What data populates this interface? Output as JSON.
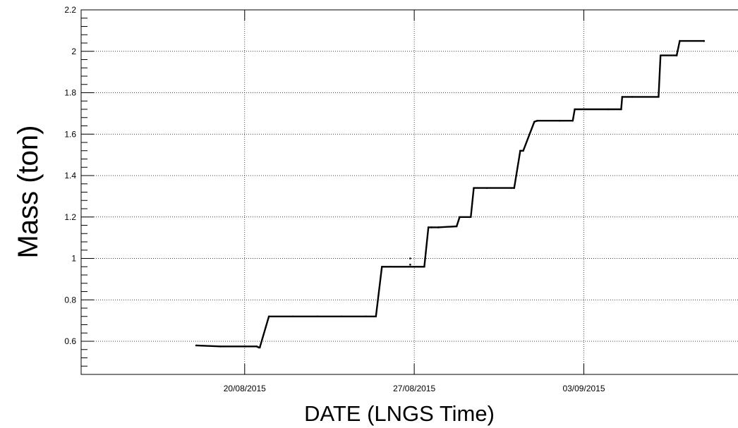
{
  "chart_data": {
    "type": "scatter",
    "xlabel": "DATE (LNGS Time)",
    "ylabel": "Mass (ton)",
    "ylim": [
      0.44,
      2.2
    ],
    "xlim": [
      "2015-08-13T06:00",
      "2015-09-10T05:00"
    ],
    "grid": true,
    "y_ticks": [
      0.6,
      0.8,
      1,
      1.2,
      1.4,
      1.6,
      1.8,
      2,
      2.2
    ],
    "y_tick_labels": [
      "0.6",
      "0.8",
      "1",
      "1.2",
      "1.4",
      "1.6",
      "1.8",
      "2",
      "2.2"
    ],
    "x_ticks": [
      "2015-08-20T00:00",
      "2015-08-27T00:00",
      "2015-09-03T00:00"
    ],
    "x_tick_labels": [
      "20/08/2015",
      "27/08/2015",
      "03/09/2015"
    ],
    "series": [
      {
        "x": [
          "2015-08-18T00:00",
          "2015-08-19T00:00",
          "2015-08-20T00:00",
          "2015-08-20T12:00",
          "2015-08-20T14:00",
          "2015-08-20T15:00",
          "2015-08-21T00:00",
          "2015-08-22T00:00",
          "2015-08-23T00:00",
          "2015-08-24T00:00",
          "2015-08-25T00:00",
          "2015-08-25T10:00",
          "2015-08-25T16:00",
          "2015-08-26T00:00",
          "2015-08-27T00:00",
          "2015-08-27T10:00",
          "2015-08-27T14:00",
          "2015-08-27T17:00",
          "2015-08-28T00:00",
          "2015-08-28T18:00",
          "2015-08-28T21:00",
          "2015-08-29T08:00",
          "2015-08-29T11:00",
          "2015-08-30T00:00",
          "2015-08-31T00:00",
          "2015-08-31T03:00",
          "2015-08-31T09:00",
          "2015-08-31T12:00",
          "2015-08-31T23:00",
          "2015-09-01T02:00",
          "2015-09-02T00:00",
          "2015-09-02T13:00",
          "2015-09-02T15:00",
          "2015-09-03T00:00",
          "2015-09-04T00:00",
          "2015-09-04T13:00",
          "2015-09-04T14:00",
          "2015-09-05T00:00",
          "2015-09-06T02:00",
          "2015-09-06T04:00",
          "2015-09-06T20:00",
          "2015-09-06T23:00",
          "2015-09-07T23:00"
        ],
        "y": [
          0.58,
          0.575,
          0.575,
          0.575,
          0.57,
          0.57,
          0.72,
          0.72,
          0.72,
          0.72,
          0.72,
          0.72,
          0.96,
          0.96,
          0.96,
          0.96,
          1.15,
          1.15,
          1.15,
          1.155,
          1.2,
          1.2,
          1.34,
          1.34,
          1.34,
          1.34,
          1.52,
          1.52,
          1.66,
          1.665,
          1.665,
          1.665,
          1.72,
          1.72,
          1.72,
          1.72,
          1.78,
          1.78,
          1.78,
          1.98,
          1.98,
          2.05,
          2.05
        ]
      }
    ],
    "outliers": [
      {
        "x": "2015-08-26T20:00",
        "y": 1.0
      },
      {
        "x": "2015-08-26T20:00",
        "y": 0.97
      }
    ]
  }
}
